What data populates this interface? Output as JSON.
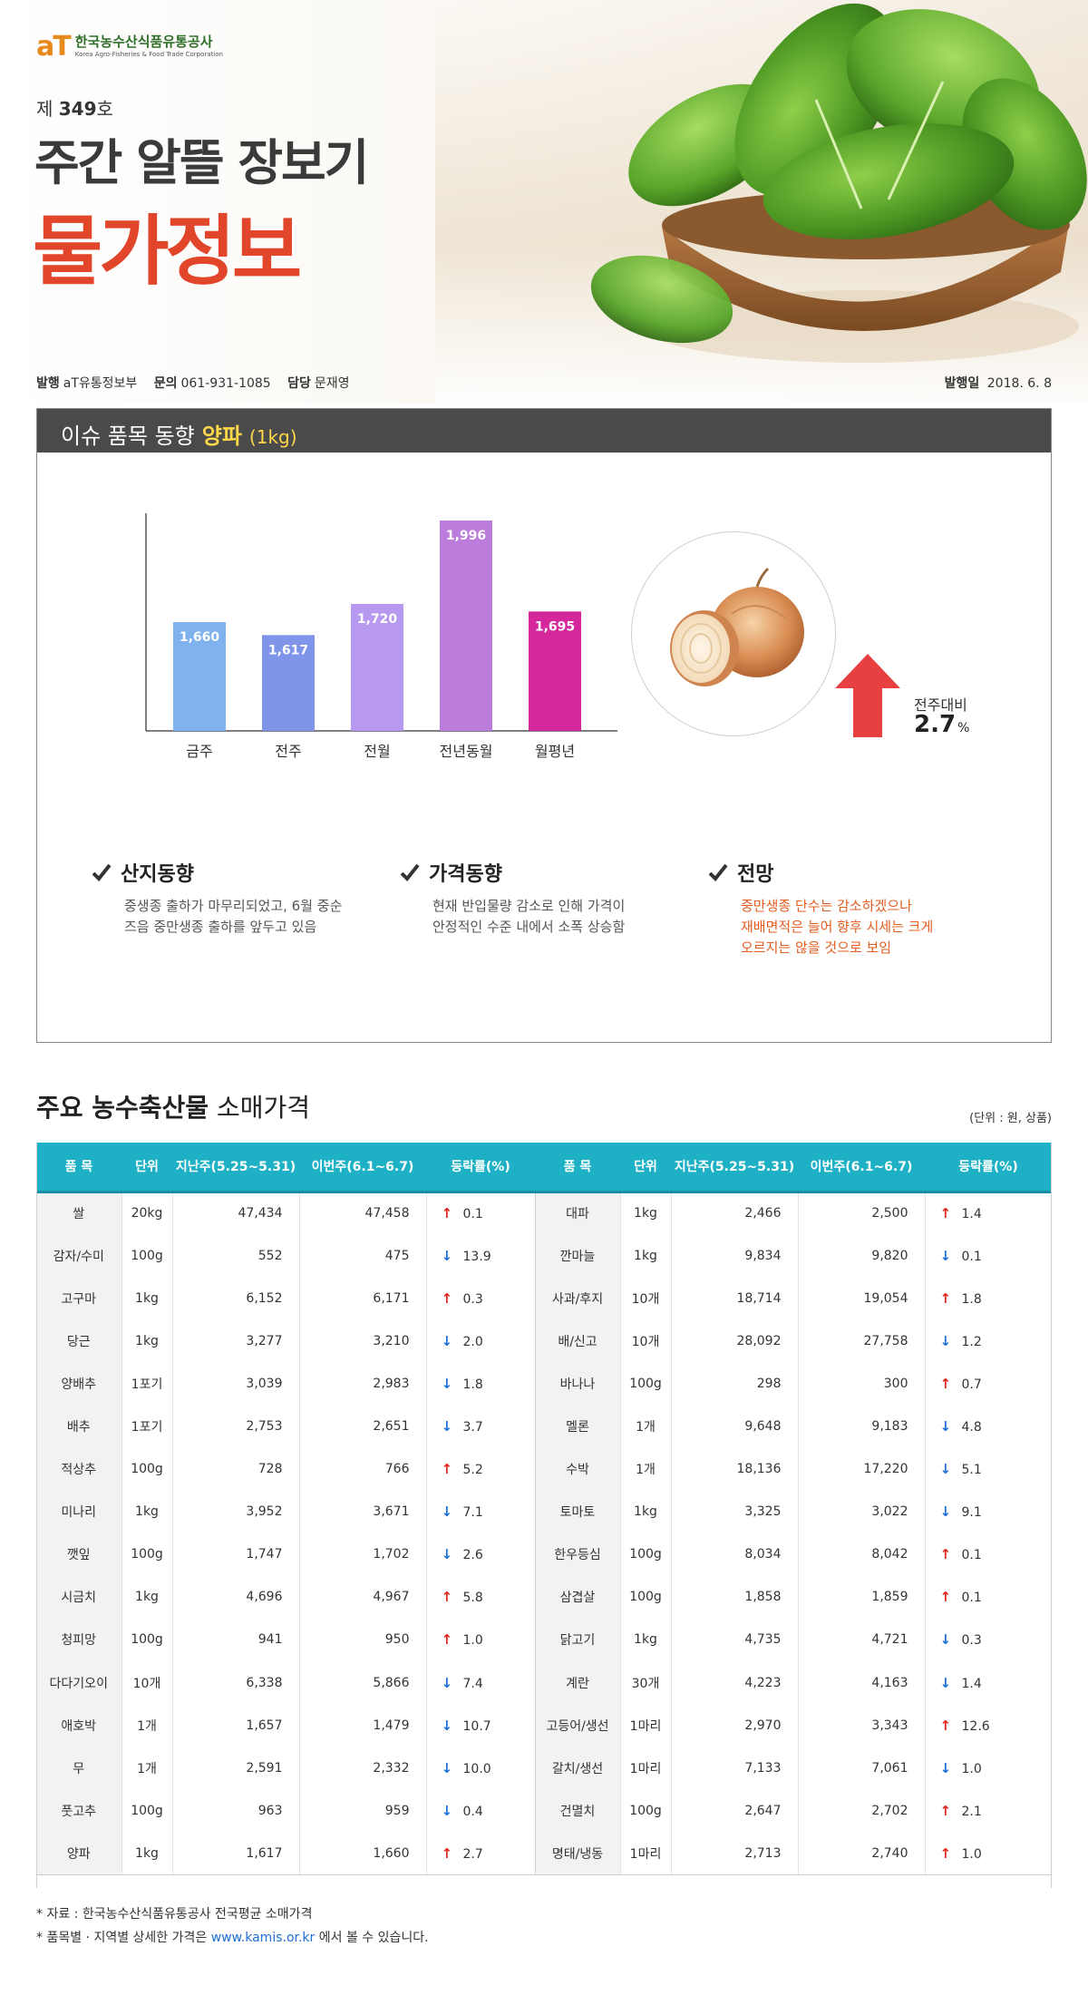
{
  "header": {
    "logo_mark": "aT",
    "logo_korean": "한국농수산식품유통공사",
    "logo_english": "Korea Agro-Fisheries & Food Trade Corporation",
    "issue_prefix": "제",
    "issue_number": "349",
    "issue_suffix": "호",
    "title_line1": "주간 알뜰 장보기",
    "title_line2": "물가정보"
  },
  "publication": {
    "publisher_label": "발행",
    "publisher_value": "aT유통정보부",
    "contact_label": "문의",
    "contact_value": "061-931-1085",
    "manager_label": "담당",
    "manager_value": "문재영",
    "date_label": "발행일",
    "date_value": "2018. 6. 8"
  },
  "issue_panel": {
    "heading": "이슈 품목 동향",
    "item": "양파",
    "item_unit": "(1kg)",
    "change_label": "전주대비",
    "change_value": "2.7",
    "change_unit": "%",
    "change_direction": "up",
    "notes": [
      {
        "title": "산지동향",
        "body": "중생종 출하가 마무리되었고, 6월 중순\n즈음 중만생종 출하를 앞두고 있음",
        "highlight": false
      },
      {
        "title": "가격동향",
        "body": "현재 반입물량 감소로 인해 가격이\n안정적인 수준 내에서 소폭 상승함",
        "highlight": false
      },
      {
        "title": "전망",
        "body": "중만생종 단수는 감소하겠으나\n재배면적은 늘어 향후 시세는 크게\n오르지는 않을 것으로 보임",
        "highlight": true
      }
    ]
  },
  "chart_data": {
    "type": "bar",
    "categories": [
      "금주",
      "전주",
      "전월",
      "전년동월",
      "월평년"
    ],
    "values": [
      1660,
      1617,
      1720,
      1996,
      1695
    ],
    "value_labels": [
      "1,660",
      "1,617",
      "1,720",
      "1,996",
      "1,695"
    ],
    "colors": [
      "#7fb2ef",
      "#7f95ea",
      "#b79af0",
      "#bb7cdc",
      "#d4279c"
    ],
    "title": "",
    "xlabel": "",
    "ylabel": "",
    "ylim": [
      1300,
      2050
    ],
    "grid": false,
    "legend": "none"
  },
  "price_table": {
    "title_bold": "주요 농수축산물",
    "title_rest": "소매가격",
    "unit_note": "(단위 : 원, 상품)",
    "headers": [
      "품 목",
      "단위",
      "지난주(5.25~5.31)",
      "이번주(6.1~6.7)",
      "등락률(%)",
      "품 목",
      "단위",
      "지난주(5.25~5.31)",
      "이번주(6.1~6.7)",
      "등락률(%)"
    ],
    "rows": [
      {
        "l": [
          "쌀",
          "20kg",
          "47,434",
          "47,458",
          "up",
          "0.1"
        ],
        "r": [
          "대파",
          "1kg",
          "2,466",
          "2,500",
          "up",
          "1.4"
        ]
      },
      {
        "l": [
          "감자/수미",
          "100g",
          "552",
          "475",
          "down",
          "13.9"
        ],
        "r": [
          "깐마늘",
          "1kg",
          "9,834",
          "9,820",
          "down",
          "0.1"
        ]
      },
      {
        "l": [
          "고구마",
          "1kg",
          "6,152",
          "6,171",
          "up",
          "0.3"
        ],
        "r": [
          "사과/후지",
          "10개",
          "18,714",
          "19,054",
          "up",
          "1.8"
        ]
      },
      {
        "l": [
          "당근",
          "1kg",
          "3,277",
          "3,210",
          "down",
          "2.0"
        ],
        "r": [
          "배/신고",
          "10개",
          "28,092",
          "27,758",
          "down",
          "1.2"
        ]
      },
      {
        "l": [
          "양배추",
          "1포기",
          "3,039",
          "2,983",
          "down",
          "1.8"
        ],
        "r": [
          "바나나",
          "100g",
          "298",
          "300",
          "up",
          "0.7"
        ]
      },
      {
        "l": [
          "배추",
          "1포기",
          "2,753",
          "2,651",
          "down",
          "3.7"
        ],
        "r": [
          "멜론",
          "1개",
          "9,648",
          "9,183",
          "down",
          "4.8"
        ]
      },
      {
        "l": [
          "적상추",
          "100g",
          "728",
          "766",
          "up",
          "5.2"
        ],
        "r": [
          "수박",
          "1개",
          "18,136",
          "17,220",
          "down",
          "5.1"
        ]
      },
      {
        "l": [
          "미나리",
          "1kg",
          "3,952",
          "3,671",
          "down",
          "7.1"
        ],
        "r": [
          "토마토",
          "1kg",
          "3,325",
          "3,022",
          "down",
          "9.1"
        ]
      },
      {
        "l": [
          "깻잎",
          "100g",
          "1,747",
          "1,702",
          "down",
          "2.6"
        ],
        "r": [
          "한우등심",
          "100g",
          "8,034",
          "8,042",
          "up",
          "0.1"
        ]
      },
      {
        "l": [
          "시금치",
          "1kg",
          "4,696",
          "4,967",
          "up",
          "5.8"
        ],
        "r": [
          "삼겹살",
          "100g",
          "1,858",
          "1,859",
          "up",
          "0.1"
        ]
      },
      {
        "l": [
          "청피망",
          "100g",
          "941",
          "950",
          "up",
          "1.0"
        ],
        "r": [
          "닭고기",
          "1kg",
          "4,735",
          "4,721",
          "down",
          "0.3"
        ]
      },
      {
        "l": [
          "다다기오이",
          "10개",
          "6,338",
          "5,866",
          "down",
          "7.4"
        ],
        "r": [
          "계란",
          "30개",
          "4,223",
          "4,163",
          "down",
          "1.4"
        ]
      },
      {
        "l": [
          "애호박",
          "1개",
          "1,657",
          "1,479",
          "down",
          "10.7"
        ],
        "r": [
          "고등어/생선",
          "1마리",
          "2,970",
          "3,343",
          "up",
          "12.6"
        ]
      },
      {
        "l": [
          "무",
          "1개",
          "2,591",
          "2,332",
          "down",
          "10.0"
        ],
        "r": [
          "갈치/생선",
          "1마리",
          "7,133",
          "7,061",
          "down",
          "1.0"
        ]
      },
      {
        "l": [
          "풋고추",
          "100g",
          "963",
          "959",
          "down",
          "0.4"
        ],
        "r": [
          "건멸치",
          "100g",
          "2,647",
          "2,702",
          "up",
          "2.1"
        ]
      },
      {
        "l": [
          "양파",
          "1kg",
          "1,617",
          "1,660",
          "up",
          "2.7"
        ],
        "r": [
          "명태/냉동",
          "1마리",
          "2,713",
          "2,740",
          "up",
          "1.0"
        ]
      }
    ]
  },
  "footer": {
    "source": "* 자료 : 한국농수산식품유통공사 전국평균 소매가격",
    "detail_prefix": "* 품목별 · 지역별 상세한 가격은",
    "detail_link": "www.kamis.or.kr",
    "detail_suffix": "에서 볼 수 있습니다."
  },
  "colors": {
    "title_red": "#e1452a",
    "table_header": "#1eb1c6",
    "arrow_up": "#e3261f",
    "arrow_down": "#1e6fd6",
    "highlight_orange": "#e35e20"
  }
}
